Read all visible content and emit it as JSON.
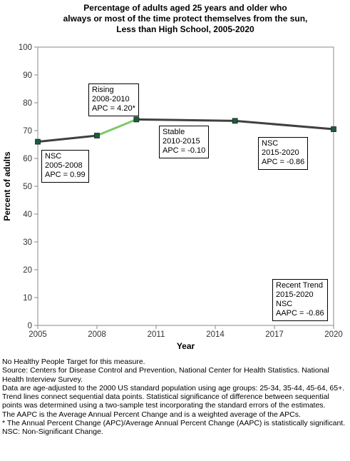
{
  "title_lines": [
    "Percentage of adults aged 25 years and older who",
    "always or most of the time protect themselves from the sun,",
    "Less than High School,  2005-2020"
  ],
  "chart_data": {
    "type": "line",
    "title": "Percentage of adults aged 25 years and older who always or most of the time protect themselves from the sun, Less than High School, 2005-2020",
    "xlabel": "Year",
    "ylabel": "Percent of adults",
    "xlim": [
      2005,
      2020
    ],
    "ylim": [
      0,
      100
    ],
    "x_ticks": [
      2005,
      2008,
      2011,
      2014,
      2017,
      2020
    ],
    "y_ticks": [
      0,
      10,
      20,
      30,
      40,
      50,
      60,
      70,
      80,
      90,
      100
    ],
    "grid": false,
    "points": [
      {
        "x": 2005,
        "y": 66.0
      },
      {
        "x": 2008,
        "y": 68.2
      },
      {
        "x": 2010,
        "y": 74.0
      },
      {
        "x": 2015,
        "y": 73.5
      },
      {
        "x": 2020,
        "y": 70.5
      }
    ],
    "segments": [
      {
        "from": 2005,
        "to": 2008,
        "color": "#404040"
      },
      {
        "from": 2008,
        "to": 2010,
        "color": "#7fc866"
      },
      {
        "from": 2010,
        "to": 2015,
        "color": "#404040"
      },
      {
        "from": 2015,
        "to": 2020,
        "color": "#404040"
      }
    ],
    "marker_color": "#1f5a3e",
    "annotations": [
      {
        "lines": [
          "NSC",
          "2005-2008",
          "APC =  0.99"
        ]
      },
      {
        "lines": [
          "Rising",
          "2008-2010",
          "APC =  4.20*"
        ]
      },
      {
        "lines": [
          "Stable",
          "2010-2015",
          "APC = -0.10"
        ]
      },
      {
        "lines": [
          "NSC",
          "2015-2020",
          "APC = -0.86"
        ]
      },
      {
        "lines": [
          "Recent Trend",
          "2015-2020",
          "NSC",
          "AAPC = -0.86"
        ]
      }
    ]
  },
  "notes": [
    "No Healthy People Target for this measure.",
    "Source: Centers for Disease Control and Prevention, National Center for Health Statistics. National Health Interview Survey.",
    "Data are age-adjusted to the 2000 US standard population using age groups: 25-34, 35-44, 45-64, 65+.",
    "Trend lines connect sequential data points. Statistical significance of difference between sequential points was determined using a two-sample test incorporating the standard errors of the estimates.",
    "The AAPC is the Average Annual Percent Change and is a weighted average of the APCs.",
    "* The Annual Percent Change (APC)/Average Annual Percent Change (AAPC) is statistically significant.",
    "NSC: Non-Significant Change."
  ]
}
